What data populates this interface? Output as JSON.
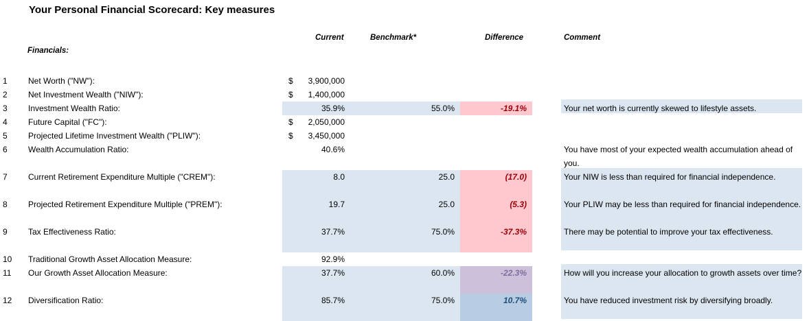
{
  "title": "Your Personal Financial Scorecard: Key measures",
  "headers": {
    "current": "Current",
    "benchmark": "Benchmark*",
    "difference": "Difference",
    "comment": "Comment"
  },
  "section": "Financials:",
  "currency_symbol": "$",
  "colors": {
    "band": "#dce6f1",
    "negative_fill": "#ffc7ce",
    "negative_text": "#9c0006",
    "neutral_fill": "#ccc0da",
    "positive_fill": "#b8cce4"
  },
  "rows": [
    {
      "num": "1",
      "label": "Net Worth (\"NW\"):",
      "current": "3,900,000",
      "benchmark": "",
      "difference": "",
      "comment": ""
    },
    {
      "num": "2",
      "label": "Net Investment Wealth (\"NIW\"):",
      "current": "1,400,000",
      "benchmark": "",
      "difference": "",
      "comment": ""
    },
    {
      "num": "3",
      "label": "Investment Wealth Ratio:",
      "current": "35.9%",
      "benchmark": "55.0%",
      "difference": "-19.1%",
      "comment": "Your net worth is currently skewed to lifestyle assets."
    },
    {
      "num": "4",
      "label": "Future Capital (\"FC\"):",
      "current": "2,050,000",
      "benchmark": "",
      "difference": "",
      "comment": ""
    },
    {
      "num": "5",
      "label": "Projected Lifetime Investment Wealth (\"PLIW\"):",
      "current": "3,450,000",
      "benchmark": "",
      "difference": "",
      "comment": ""
    },
    {
      "num": "6",
      "label": "Wealth Accumulation Ratio:",
      "current": "40.6%",
      "benchmark": "",
      "difference": "",
      "comment": "You have most of your expected wealth accumulation ahead of you."
    },
    {
      "num": "7",
      "label": "Current Retirement Expenditure Multiple (\"CREM\"):",
      "current": "8.0",
      "benchmark": "25.0",
      "difference": "(17.0)",
      "comment": "Your NIW is less than required for financial independence."
    },
    {
      "num": "8",
      "label": "Projected Retirement Expenditure Multiple (\"PREM\"):",
      "current": "19.7",
      "benchmark": "25.0",
      "difference": "(5.3)",
      "comment": "Your PLIW may be less than required for financial independence."
    },
    {
      "num": "9",
      "label": "Tax Effectiveness Ratio:",
      "current": "37.7%",
      "benchmark": "75.0%",
      "difference": "-37.3%",
      "comment": "There may be potential to improve your tax effectiveness."
    },
    {
      "num": "10",
      "label": "Traditional Growth Asset Allocation Measure:",
      "current": "92.9%",
      "benchmark": "",
      "difference": "",
      "comment": ""
    },
    {
      "num": "11",
      "label": "Our Growth Asset Allocation Measure:",
      "current": "37.7%",
      "benchmark": "60.0%",
      "difference": "-22.3%",
      "comment": "How will you increase your allocation to growth assets over time?"
    },
    {
      "num": "12",
      "label": "Diversification Ratio:",
      "current": "85.7%",
      "benchmark": "75.0%",
      "difference": "10.7%",
      "comment": "You have reduced investment risk by diversifying broadly."
    }
  ]
}
